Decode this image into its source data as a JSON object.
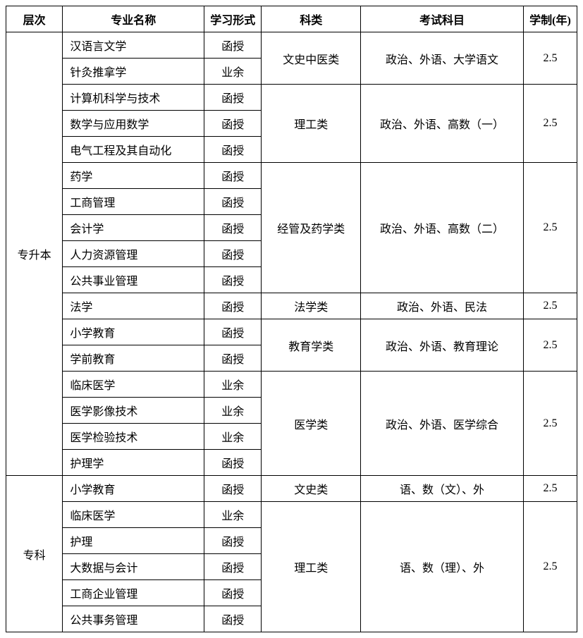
{
  "headers": {
    "level": "层次",
    "major": "专业名称",
    "form": "学习形式",
    "category": "科类",
    "subjects": "考试科目",
    "years": "学制(年)"
  },
  "levels": {
    "upgrade": "专升本",
    "junior": "专科"
  },
  "categories": {
    "literature": "文史中医类",
    "science": "理工类",
    "economics": "经管及药学类",
    "law": "法学类",
    "education": "教育学类",
    "medical": "医学类",
    "literature2": "文史类",
    "science2": "理工类"
  },
  "subjects": {
    "literature": "政治、外语、大学语文",
    "science": "政治、外语、高数（一）",
    "economics": "政治、外语、高数（二）",
    "law": "政治、外语、民法",
    "education": "政治、外语、教育理论",
    "medical": "政治、外语、医学综合",
    "literature2": "语、数（文）、外",
    "science2": "语、数（理）、外"
  },
  "majors": {
    "m1": "汉语言文学",
    "m2": "针灸推拿学",
    "m3": "计算机科学与技术",
    "m4": "数学与应用数学",
    "m5": "电气工程及其自动化",
    "m6": "药学",
    "m7": "工商管理",
    "m8": "会计学",
    "m9": "人力资源管理",
    "m10": "公共事业管理",
    "m11": "法学",
    "m12": "小学教育",
    "m13": "学前教育",
    "m14": "临床医学",
    "m15": "医学影像技术",
    "m16": "医学检验技术",
    "m17": "护理学",
    "m18": "小学教育",
    "m19": "临床医学",
    "m20": "护理",
    "m21": "大数据与会计",
    "m22": "工商企业管理",
    "m23": "公共事务管理"
  },
  "forms": {
    "hanshou": "函授",
    "yeyu": "业余"
  },
  "years": {
    "y25": "2.5"
  }
}
